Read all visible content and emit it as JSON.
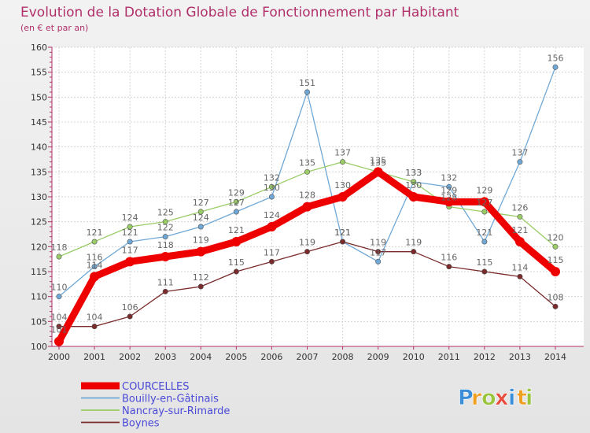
{
  "chart_data": {
    "type": "line",
    "title": "Evolution de la Dotation Globale de Fonctionnement par Habitant",
    "subtitle": "(en € et par an)",
    "x": [
      "2000",
      "2001",
      "2002",
      "2003",
      "2004",
      "2005",
      "2006",
      "2007",
      "2008",
      "2009",
      "2010",
      "2011",
      "2012",
      "2013",
      "2014"
    ],
    "ylim": [
      100,
      160
    ],
    "yticks": [
      100,
      105,
      110,
      115,
      120,
      125,
      130,
      135,
      140,
      145,
      150,
      155,
      160
    ],
    "grid": true,
    "series": [
      {
        "name": "COURCELLES",
        "color": "#ee0000",
        "emphasis": true,
        "values": [
          101,
          114,
          117,
          118,
          119,
          121,
          124,
          128,
          130,
          135,
          130,
          129,
          129,
          121,
          115
        ],
        "labels": [
          "101",
          "114",
          "117",
          "118",
          "119",
          "121",
          "124",
          "128",
          "130",
          "135",
          "130",
          "129",
          "129",
          "121",
          "115"
        ]
      },
      {
        "name": "Bouilly-en-Gâtinais",
        "color": "#6fa8d6",
        "emphasis": false,
        "values": [
          110,
          116,
          121,
          122,
          124,
          127,
          130,
          151,
          121,
          117,
          133,
          132,
          121,
          137,
          156
        ],
        "labels": [
          "110",
          "116",
          "121",
          "122",
          "124",
          "127",
          "130",
          "151",
          "121",
          "117",
          "133",
          "132",
          "121",
          "137",
          "156"
        ]
      },
      {
        "name": "Nancray-sur-Rimarde",
        "color": "#99cc66",
        "emphasis": false,
        "values": [
          118,
          121,
          124,
          125,
          127,
          129,
          132,
          135,
          137,
          135,
          133,
          128,
          127,
          126,
          120
        ],
        "labels": [
          "118",
          "121",
          "124",
          "125",
          "127",
          "129",
          "132",
          "135",
          "137",
          "135",
          "133",
          "128",
          "127",
          "126",
          "120"
        ]
      },
      {
        "name": "Boynes",
        "color": "#7a2a2a",
        "emphasis": false,
        "values": [
          104,
          104,
          106,
          111,
          112,
          115,
          117,
          119,
          121,
          119,
          119,
          116,
          115,
          114,
          108
        ],
        "labels": [
          "104",
          "104",
          "106",
          "111",
          "112",
          "115",
          "117",
          "119",
          "121",
          "119",
          "119",
          "116",
          "115",
          "114",
          "108"
        ]
      }
    ]
  },
  "brand": {
    "letters": [
      "P",
      "r",
      "o",
      "x",
      "i",
      "t",
      "i"
    ],
    "colors": [
      "#3b8fd9",
      "#f0a020",
      "#9ac43c",
      "#e84c3d",
      "#3b8fd9",
      "#f0a020",
      "#9ac43c"
    ]
  }
}
